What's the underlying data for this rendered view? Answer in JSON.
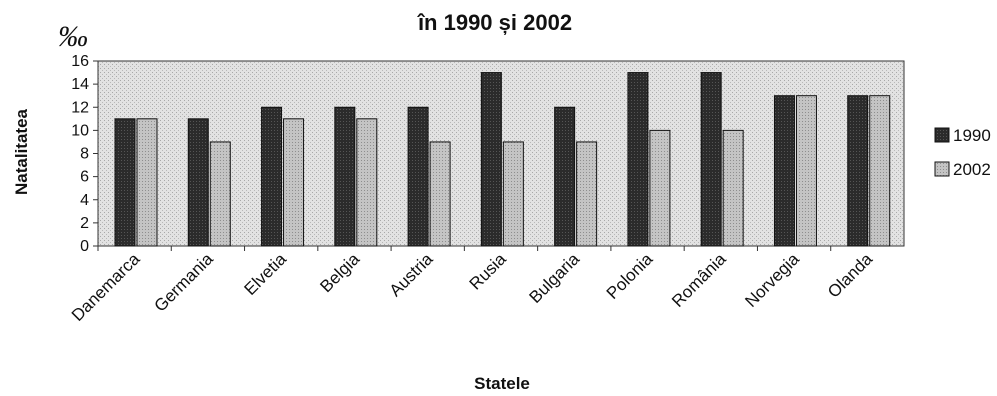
{
  "chart_data": {
    "type": "bar",
    "title": "în 1990 și 2002",
    "unit": "‰",
    "xlabel": "Statele",
    "ylabel": "Natalitatea",
    "ylim": [
      0,
      16
    ],
    "yticks": [
      0,
      2,
      4,
      6,
      8,
      10,
      12,
      14,
      16
    ],
    "categories": [
      "Danemarca",
      "Germania",
      "Elvetia",
      "Belgia",
      "Austria",
      "Rusia",
      "Bulgaria",
      "Polonia",
      "România",
      "Norvegia",
      "Olanda"
    ],
    "series": [
      {
        "name": "1990",
        "values": [
          11,
          11,
          12,
          12,
          12,
          15,
          12,
          15,
          15,
          13,
          13
        ],
        "color": "#2b2b2b"
      },
      {
        "name": "2002",
        "values": [
          11,
          9,
          11,
          11,
          9,
          9,
          9,
          10,
          10,
          13,
          13
        ],
        "color": "#bdbdbd"
      }
    ],
    "legend_position": "right",
    "grid": false,
    "plot_background": "#dcdcdc"
  }
}
